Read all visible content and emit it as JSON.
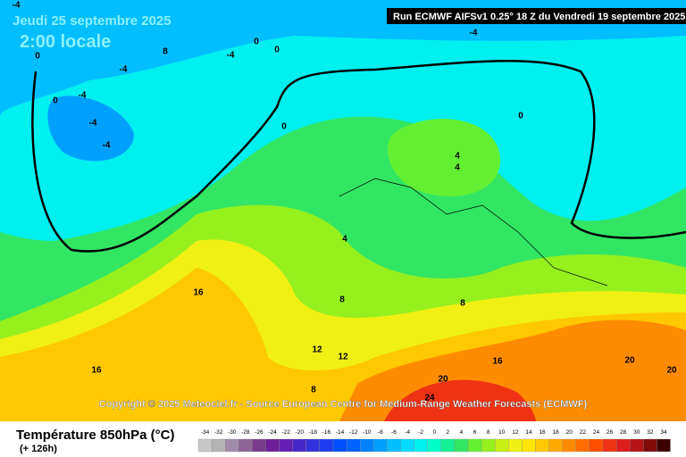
{
  "header": {
    "date": "Jeudi 25 septembre 2025",
    "time": "2:00 locale",
    "run": "Run ECMWF AIFSv1 0.25° 18 Z du Vendredi 19 septembre 2025"
  },
  "copyright": "Copyright © 2025 Meteociel.fr - Source European Centre for Medium-Range Weather Forecasts (ECMWF)",
  "legend": {
    "title": "Température 850hPa (°C)",
    "subtitle": "(+ 126h)",
    "values": [
      -34,
      -32,
      -30,
      -28,
      -26,
      -24,
      -22,
      -20,
      -18,
      -16,
      -14,
      -12,
      -10,
      -8,
      -6,
      -4,
      -2,
      0,
      2,
      4,
      6,
      8,
      10,
      12,
      14,
      16,
      18,
      20,
      22,
      24,
      26,
      28,
      30,
      32,
      34
    ],
    "colors": [
      "#c8c8c8",
      "#b4b4b4",
      "#a08ca8",
      "#8c6496",
      "#783c8c",
      "#6e1e96",
      "#641eb4",
      "#4628c8",
      "#3232dc",
      "#1e3cf0",
      "#0050ff",
      "#0064ff",
      "#0082ff",
      "#00a0ff",
      "#00beff",
      "#00dcff",
      "#00f0f0",
      "#00ffc8",
      "#14f096",
      "#32e664",
      "#64f032",
      "#96f01e",
      "#c8f014",
      "#f0f014",
      "#ffe600",
      "#ffc800",
      "#ffaa00",
      "#ff8c00",
      "#ff6e00",
      "#ff5000",
      "#f03214",
      "#dc1e1e",
      "#b41414",
      "#820a0a",
      "#3c0000"
    ]
  },
  "contours": [
    -4,
    -4,
    0,
    0,
    8,
    -4,
    0,
    -4,
    -4,
    0,
    -4,
    -4,
    0,
    0,
    4,
    4,
    4,
    16,
    8,
    8,
    12,
    12,
    16,
    16,
    20,
    20,
    20,
    8,
    24
  ]
}
